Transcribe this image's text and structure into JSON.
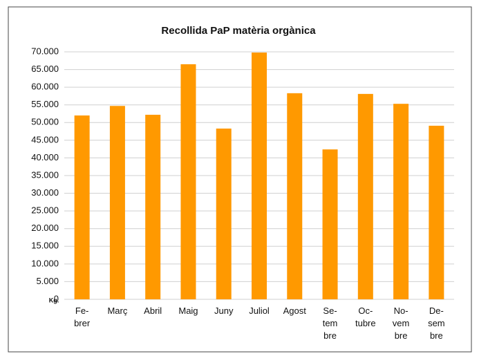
{
  "chart_data": {
    "type": "bar",
    "title": "Recollida PaP matèria orgànica",
    "y_label": "Kg.",
    "categories": [
      "Fe-\nbrer",
      "Març",
      "Abril",
      "Maig",
      "Juny",
      "Juliol",
      "Agost",
      "Se-\ntem\nbre",
      "Oc-\ntubre",
      "No-\nvem\nbre",
      "De-\nsem\nbre"
    ],
    "values": [
      52000,
      54700,
      52200,
      66500,
      48300,
      69800,
      58300,
      42400,
      58100,
      55300,
      49100
    ],
    "color": "#ff9900",
    "ylim": [
      0,
      70000
    ],
    "yticks": [
      0,
      {
        "value": 5000,
        "label": "5.000"
      },
      {
        "value": 10000,
        "label": "10.000"
      },
      {
        "value": 15000,
        "label": "15.000"
      },
      {
        "value": 20000,
        "label": "20.000"
      },
      {
        "value": 25000,
        "label": "25.000"
      },
      {
        "value": 30000,
        "label": "30.000"
      },
      {
        "value": 35000,
        "label": "35.000"
      },
      {
        "value": 40000,
        "label": "40.000"
      },
      {
        "value": 45000,
        "label": "45.000"
      },
      {
        "value": 50000,
        "label": "50.000"
      },
      {
        "value": 55000,
        "label": "55.000"
      },
      {
        "value": 60000,
        "label": "60.000"
      },
      {
        "value": 65000,
        "label": "65.000"
      },
      {
        "value": 70000,
        "label": "70.000"
      }
    ],
    "grid": true
  }
}
